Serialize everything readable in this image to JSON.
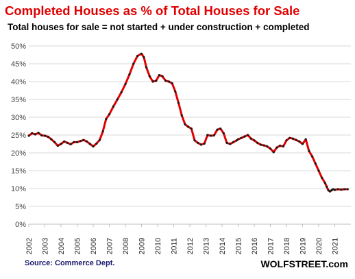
{
  "title": "Completed Houses as % of Total Houses for Sale",
  "subtitle": "Total houses for sale = not started + under construction + completed",
  "source": "Source: Commerce Dept.",
  "brand": "WOLFSTREET.com",
  "colors": {
    "title": "#e00000",
    "line": "#e00000",
    "markers": "#1a1a1a",
    "grid": "#d9d9d9"
  },
  "chart_data": {
    "type": "line",
    "title": "Completed Houses as % of Total Houses for Sale",
    "subtitle": "Total houses for sale = not started + under construction + completed",
    "xlabel": "",
    "ylabel": "",
    "ylim": [
      0,
      50
    ],
    "xlim": [
      2002,
      2022
    ],
    "grid": true,
    "legend": "none",
    "y_ticks": [
      "0%",
      "5%",
      "10%",
      "15%",
      "20%",
      "25%",
      "30%",
      "35%",
      "40%",
      "45%",
      "50%"
    ],
    "x_ticks": [
      "2002",
      "2003",
      "2004",
      "2005",
      "2006",
      "2007",
      "2008",
      "2009",
      "2010",
      "2011",
      "2012",
      "2013",
      "2014",
      "2015",
      "2016",
      "2017",
      "2018",
      "2019",
      "2020",
      "2021"
    ],
    "series": [
      {
        "x": [
          2002.0,
          2002.2,
          2002.4,
          2002.6,
          2002.8,
          2003.0,
          2003.2,
          2003.4,
          2003.6,
          2003.8,
          2004.0,
          2004.2,
          2004.4,
          2004.6,
          2004.8,
          2005.0,
          2005.2,
          2005.4,
          2005.6,
          2005.8,
          2006.0,
          2006.2,
          2006.4,
          2006.6,
          2006.8,
          2007.0,
          2007.25,
          2007.5,
          2007.75,
          2008.0,
          2008.25,
          2008.5,
          2008.75,
          2009.0,
          2009.15,
          2009.3,
          2009.5,
          2009.7,
          2009.9,
          2010.1,
          2010.3,
          2010.5,
          2010.7,
          2010.9,
          2011.1,
          2011.3,
          2011.5,
          2011.7,
          2011.9,
          2012.1,
          2012.3,
          2012.5,
          2012.7,
          2012.9,
          2013.1,
          2013.3,
          2013.5,
          2013.7,
          2013.9,
          2014.1,
          2014.3,
          2014.5,
          2014.7,
          2014.9,
          2015.0,
          2015.2,
          2015.4,
          2015.6,
          2015.8,
          2016.0,
          2016.2,
          2016.4,
          2016.6,
          2016.8,
          2017.0,
          2017.2,
          2017.4,
          2017.6,
          2017.8,
          2018.0,
          2018.2,
          2018.4,
          2018.6,
          2018.8,
          2019.0,
          2019.2,
          2019.4,
          2019.6,
          2019.8,
          2020.0,
          2020.2,
          2020.4,
          2020.5,
          2020.6,
          2020.7,
          2020.8,
          2020.9,
          2021.0,
          2021.2,
          2021.4,
          2021.6,
          2021.8
        ],
        "y": [
          24.8,
          25.5,
          25.2,
          25.6,
          24.9,
          24.8,
          24.5,
          23.8,
          23.0,
          22.0,
          22.5,
          23.2,
          22.8,
          22.4,
          23.0,
          23.0,
          23.3,
          23.6,
          23.2,
          22.5,
          21.8,
          22.6,
          23.6,
          26.0,
          29.5,
          30.8,
          33.0,
          35.0,
          37.0,
          39.3,
          42.0,
          45.0,
          47.2,
          47.8,
          46.8,
          44.0,
          41.5,
          40.0,
          40.2,
          41.8,
          41.5,
          40.2,
          40.0,
          39.5,
          37.2,
          34.0,
          30.5,
          28.0,
          27.3,
          26.8,
          23.5,
          22.8,
          22.3,
          22.6,
          25.0,
          24.8,
          24.9,
          26.5,
          26.8,
          25.5,
          22.8,
          22.5,
          23.0,
          23.5,
          23.8,
          24.2,
          24.6,
          25.0,
          24.0,
          23.5,
          22.8,
          22.3,
          22.1,
          21.8,
          21.2,
          20.2,
          21.5,
          22.0,
          21.8,
          23.5,
          24.2,
          24.0,
          23.6,
          23.2,
          22.5,
          23.8,
          20.5,
          19.0,
          17.0,
          15.0,
          13.0,
          11.5,
          10.5,
          9.5,
          9.2,
          9.5,
          9.8,
          9.6,
          9.8,
          9.7,
          9.8,
          9.8
        ]
      }
    ]
  }
}
